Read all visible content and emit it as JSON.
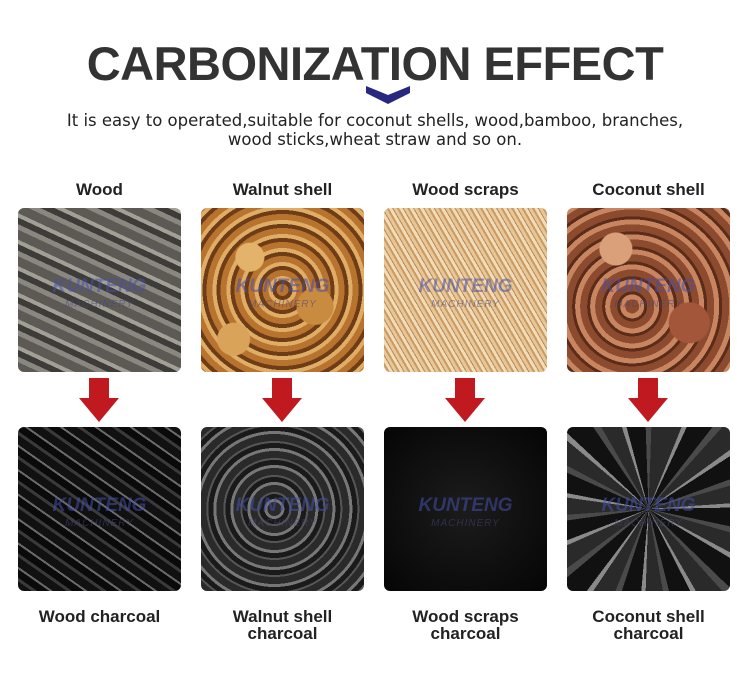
{
  "header": {
    "title": "CARBONIZATION EFFECT",
    "subtitle_line1": "It is easy to operated,suitable for coconut shells, wood,bamboo, branches,",
    "subtitle_line2": "wood sticks,wheat straw and so on."
  },
  "watermark": {
    "brand": "KUNTENG",
    "tagline": "MACHINERY"
  },
  "colors": {
    "chevron": "#27287f",
    "arrow": "#c0191f",
    "title": "#333333"
  },
  "items": [
    {
      "raw": "Wood",
      "charcoal_line1": "Wood charcoal",
      "charcoal_line2": ""
    },
    {
      "raw": "Walnut shell",
      "charcoal_line1": "Walnut shell",
      "charcoal_line2": "charcoal"
    },
    {
      "raw": "Wood scraps",
      "charcoal_line1": "Wood scraps",
      "charcoal_line2": "charcoal"
    },
    {
      "raw": "Coconut shell",
      "charcoal_line1": "Coconut shell",
      "charcoal_line2": "charcoal"
    }
  ]
}
